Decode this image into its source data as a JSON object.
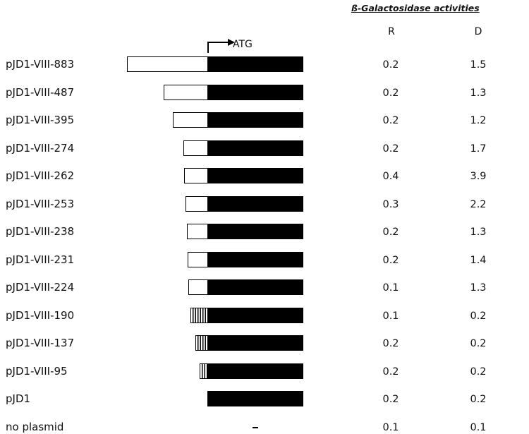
{
  "header": {
    "title": "ß-Galactosidase activities",
    "col_r": "R",
    "col_d": "D",
    "start_codon": "ATG"
  },
  "constructs": [
    {
      "label": "pJD1-VIII-883",
      "R": "0.2",
      "D": "1.5",
      "promoter": "open"
    },
    {
      "label": "pJD1-VIII-487",
      "R": "0.2",
      "D": "1.3",
      "promoter": "open"
    },
    {
      "label": "pJD1-VIII-395",
      "R": "0.2",
      "D": "1.2",
      "promoter": "open"
    },
    {
      "label": "pJD1-VIII-274",
      "R": "0.2",
      "D": "1.7",
      "promoter": "open"
    },
    {
      "label": "pJD1-VIII-262",
      "R": "0.4",
      "D": "3.9",
      "promoter": "open"
    },
    {
      "label": "pJD1-VIII-253",
      "R": "0.3",
      "D": "2.2",
      "promoter": "open"
    },
    {
      "label": "pJD1-VIII-238",
      "R": "0.2",
      "D": "1.3",
      "promoter": "open"
    },
    {
      "label": "pJD1-VIII-231",
      "R": "0.2",
      "D": "1.4",
      "promoter": "open"
    },
    {
      "label": "pJD1-VIII-224",
      "R": "0.1",
      "D": "1.3",
      "promoter": "open"
    },
    {
      "label": "pJD1-VIII-190",
      "R": "0.1",
      "D": "0.2",
      "promoter": "striped"
    },
    {
      "label": "pJD1-VIII-137",
      "R": "0.2",
      "D": "0.2",
      "promoter": "striped"
    },
    {
      "label": "pJD1-VIII-95",
      "R": "0.2",
      "D": "0.2",
      "promoter": "striped"
    },
    {
      "label": "pJD1",
      "R": "0.2",
      "D": "0.2",
      "promoter": "none"
    },
    {
      "label": "no plasmid",
      "R": "0.1",
      "D": "0.1",
      "promoter": "absent"
    }
  ],
  "colors": {
    "coding": "#000000",
    "promoter_fill": "#ffffff"
  }
}
